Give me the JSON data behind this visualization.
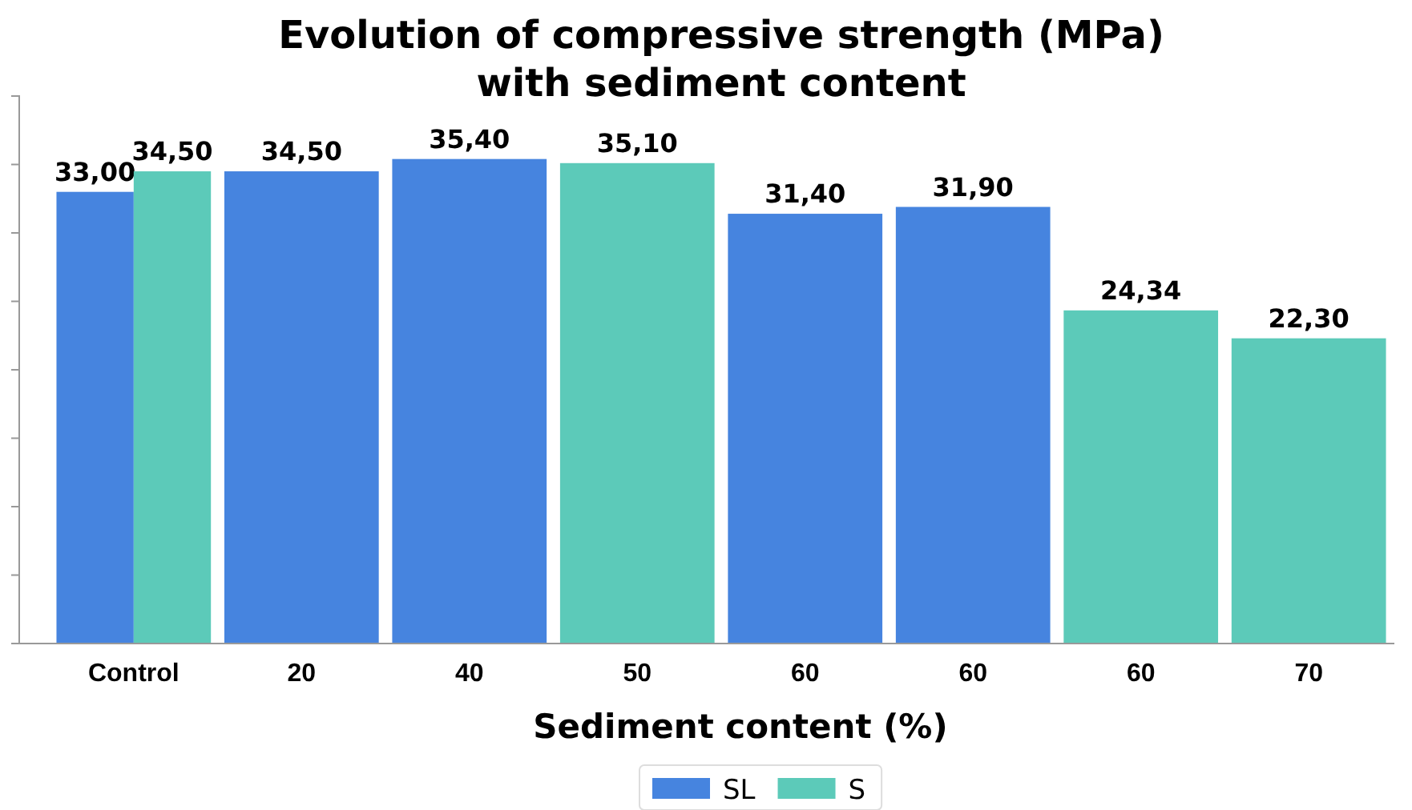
{
  "chart_data": {
    "type": "bar",
    "title": "Evolution of compressive strength (MPa)\nwith sediment content",
    "xlabel": "Sediment content (%)",
    "categories": [
      "Control",
      "20",
      "40",
      "50",
      "60",
      "60",
      "60",
      "70"
    ],
    "series": [
      {
        "name": "SL",
        "color": "#4684df",
        "values": [
          33.0,
          34.5,
          35.4,
          null,
          31.4,
          31.9,
          null,
          null
        ],
        "value_labels": [
          "33,00",
          "34,50",
          "35,40",
          null,
          "31,40",
          "31,90",
          null,
          null
        ]
      },
      {
        "name": "S",
        "color": "#5ccab9",
        "values": [
          34.5,
          null,
          null,
          35.1,
          null,
          null,
          24.34,
          22.3
        ],
        "value_labels": [
          "34,50",
          null,
          null,
          "35,10",
          null,
          null,
          "24,34",
          "22,30"
        ]
      }
    ],
    "ylim": [
      0,
      40
    ],
    "yticks": [
      {
        "value": 5,
        "label": null
      },
      {
        "value": 10,
        "label": null
      },
      {
        "value": 15,
        "label": null
      },
      {
        "value": 20,
        "label": null
      },
      {
        "value": 25,
        "label": null
      },
      {
        "value": 30,
        "label": null
      },
      {
        "value": 35,
        "label": null
      },
      {
        "value": 40,
        "label": null
      }
    ],
    "tick_labels": "x",
    "grid": false,
    "legend": "bottom"
  }
}
